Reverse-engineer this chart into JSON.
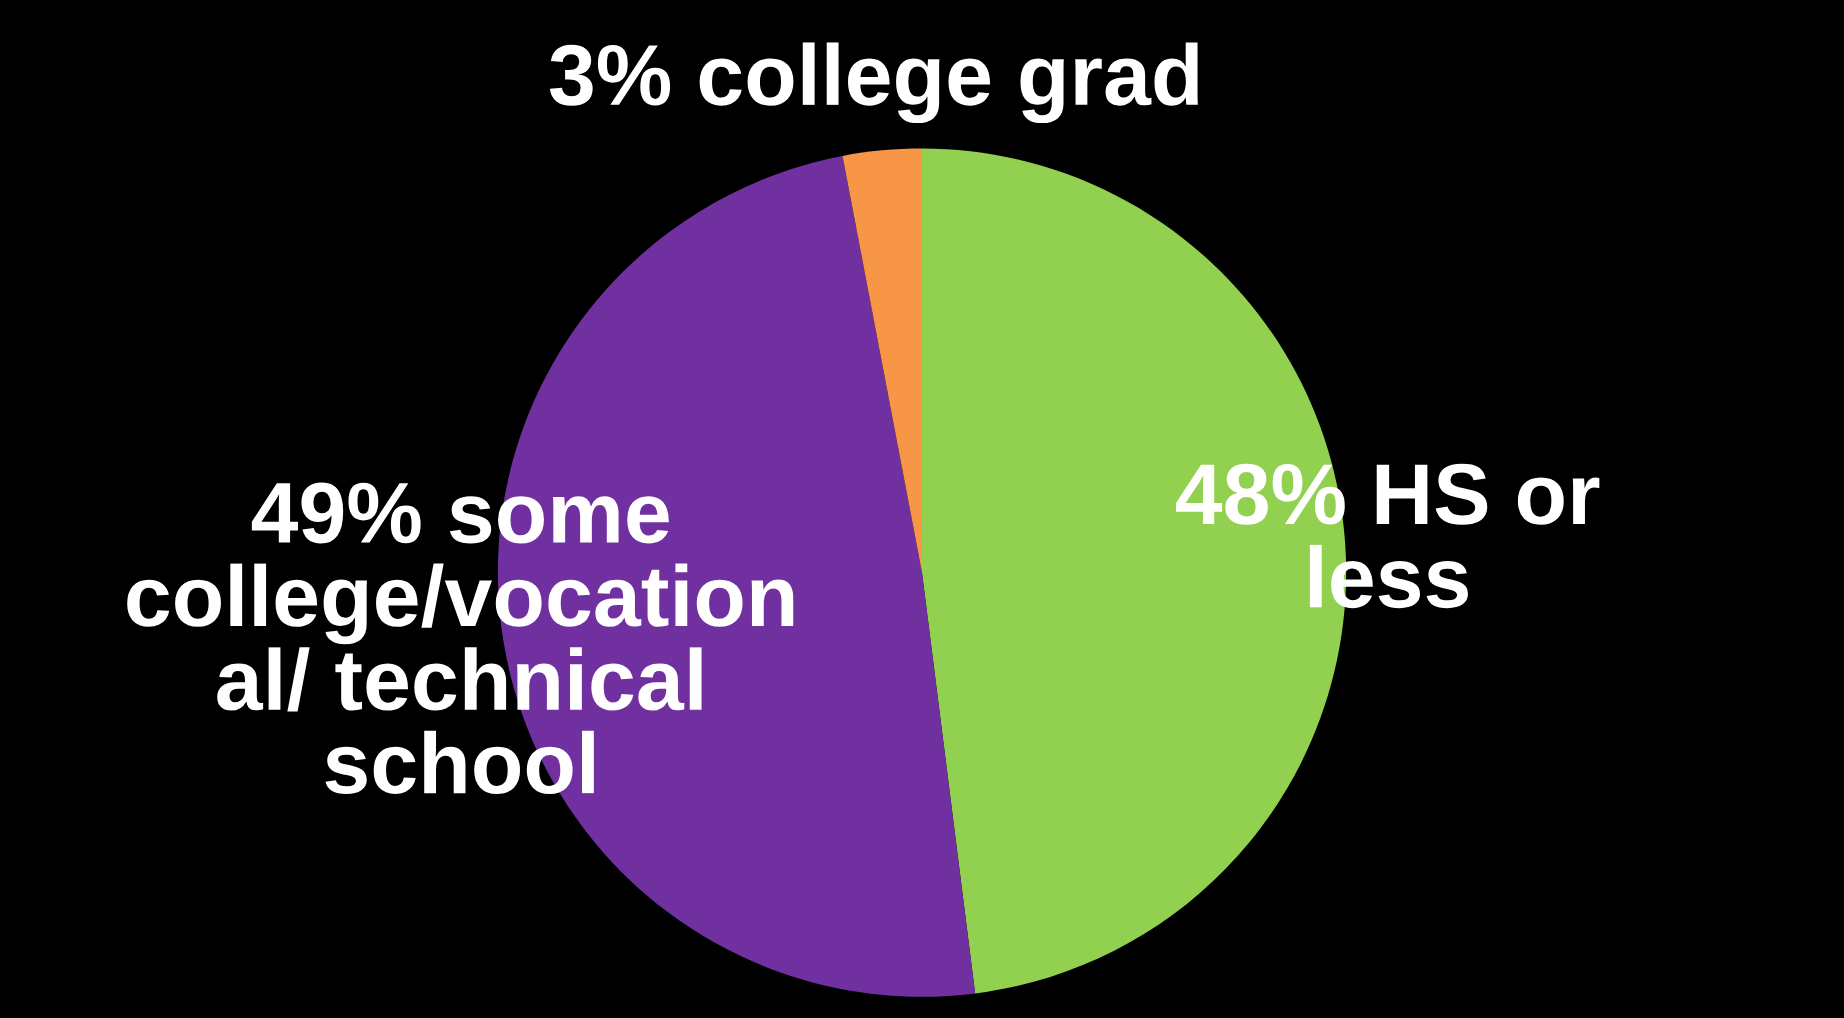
{
  "chart_data": {
    "type": "pie",
    "categories": [
      "48% HS or\nless",
      "49% some\ncollege/vocation\nal/ technical\nschool",
      "3% college grad"
    ],
    "values": [
      48,
      49,
      3
    ],
    "colors": [
      "#92d050",
      "#7030a0",
      "#f79646"
    ]
  }
}
